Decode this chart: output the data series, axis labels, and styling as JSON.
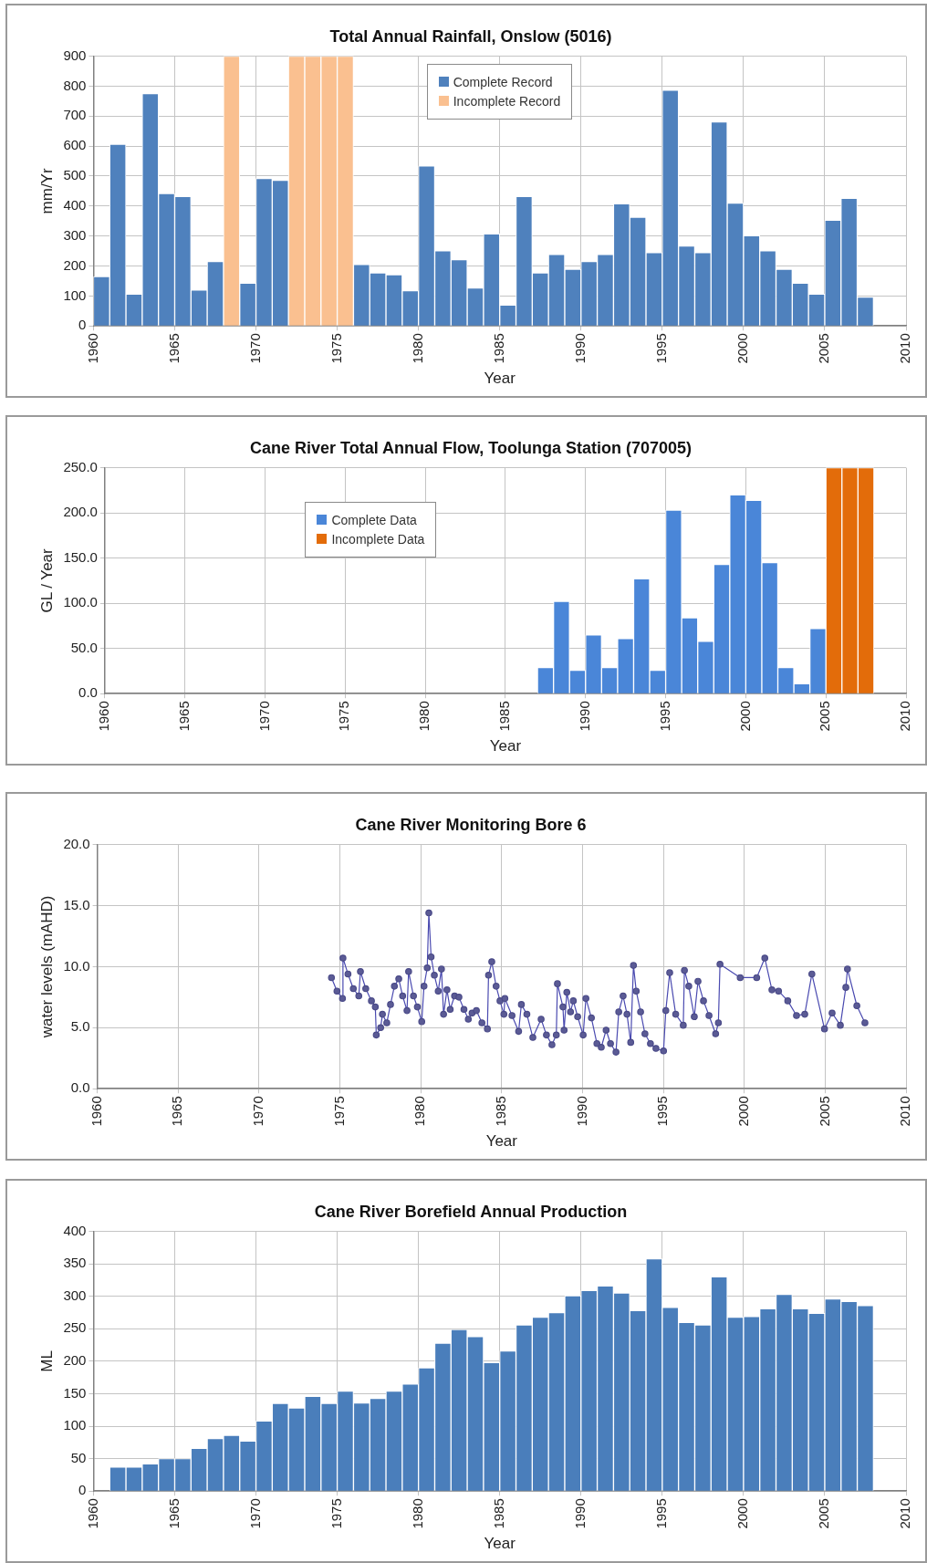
{
  "chart_data": [
    {
      "type": "bar",
      "title": "Total Annual Rainfall, Onslow (5016)",
      "xlabel": "Year",
      "ylabel": "mm/Yr",
      "xlim": [
        1960,
        2010
      ],
      "xticks": [
        1960,
        1965,
        1970,
        1975,
        1980,
        1985,
        1990,
        1995,
        2000,
        2005,
        2010
      ],
      "ylim": [
        0,
        900
      ],
      "yticks": [
        0,
        100,
        200,
        300,
        400,
        500,
        600,
        700,
        800,
        900
      ],
      "grid": true,
      "legend": "top",
      "x": [
        1960.5,
        1961.5,
        1962.5,
        1963.5,
        1964.5,
        1965.5,
        1966.5,
        1967.5,
        1968.5,
        1969.5,
        1970.5,
        1971.5,
        1972.5,
        1973.5,
        1974.5,
        1975.5,
        1976.5,
        1977.5,
        1978.5,
        1979.5,
        1980.5,
        1981.5,
        1982.5,
        1983.5,
        1984.5,
        1985.5,
        1986.5,
        1987.5,
        1988.5,
        1989.5,
        1990.5,
        1991.5,
        1992.5,
        1993.5,
        1994.5,
        1995.5,
        1996.5,
        1997.5,
        1998.5,
        1999.5,
        2000.5,
        2001.5,
        2002.5,
        2003.5,
        2004.5,
        2005.5,
        2006.5,
        2007.5
      ],
      "series": [
        {
          "name": "Complete Record",
          "color": "#4f81bd",
          "values": [
            165,
            606,
            106,
            775,
            442,
            432,
            120,
            215,
            null,
            143,
            492,
            486,
            null,
            null,
            null,
            null,
            205,
            177,
            171,
            118,
            534,
            251,
            221,
            127,
            307,
            70,
            432,
            177,
            239,
            189,
            215,
            239,
            408,
            363,
            245,
            787,
            267,
            245,
            681,
            410,
            301,
            251,
            189,
            143,
            106,
            353,
            426,
            96
          ]
        },
        {
          "name": "Incomplete Record",
          "color": "#fac090",
          "values": [
            null,
            null,
            null,
            null,
            null,
            null,
            null,
            null,
            900,
            null,
            null,
            null,
            900,
            900,
            900,
            900,
            null,
            null,
            null,
            null,
            null,
            null,
            null,
            null,
            null,
            null,
            null,
            null,
            null,
            null,
            null,
            null,
            null,
            null,
            null,
            null,
            null,
            null,
            null,
            null,
            null,
            null,
            null,
            null,
            null,
            null,
            null,
            null
          ]
        }
      ]
    },
    {
      "type": "bar",
      "title": "Cane River Total Annual Flow, Toolunga Station (707005)",
      "xlabel": "Year",
      "ylabel": "GL / Year",
      "xlim": [
        1960,
        2010
      ],
      "xticks": [
        1960,
        1965,
        1970,
        1975,
        1980,
        1985,
        1990,
        1995,
        2000,
        2005,
        2010
      ],
      "ylim": [
        0,
        250
      ],
      "yticks": [
        {
          "value": 0,
          "label": "0.0"
        },
        {
          "value": 50,
          "label": "50.0"
        },
        {
          "value": 100,
          "label": "100.0"
        },
        {
          "value": 150,
          "label": "150.0"
        },
        {
          "value": 200,
          "label": "200.0"
        },
        {
          "value": 250,
          "label": "250.0"
        }
      ],
      "grid": true,
      "legend": "top left",
      "series": [
        {
          "name": "Complete Data",
          "color": "#4a86d8",
          "x": [
            1987.5,
            1988.5,
            1989.5,
            1990.5,
            1991.5,
            1992.5,
            1993.5,
            1994.5,
            1995.5,
            1996.5,
            1997.5,
            1998.5,
            1999.5,
            2000.5,
            2001.5,
            2002.5,
            2003.5,
            2004.5
          ],
          "values": [
            29,
            102,
            26,
            65,
            29,
            61,
            127,
            26,
            203,
            84,
            58,
            143,
            220,
            214,
            145,
            29,
            11,
            72
          ]
        },
        {
          "name": "Incomplete Data",
          "color": "#e36c0a",
          "x": [
            2005.5,
            2006.5,
            2007.5
          ],
          "values": [
            250,
            250,
            250
          ]
        }
      ]
    },
    {
      "type": "line",
      "title": "Cane River Monitoring Bore 6",
      "xlabel": "Year",
      "ylabel": "water levels (mAHD)",
      "xlim": [
        1960,
        2010
      ],
      "xticks": [
        1960,
        1965,
        1970,
        1975,
        1980,
        1985,
        1990,
        1995,
        2000,
        2005,
        2010
      ],
      "ylim": [
        0,
        20
      ],
      "yticks": [
        {
          "value": 0,
          "label": "0.0"
        },
        {
          "value": 5,
          "label": "5.0"
        },
        {
          "value": 10,
          "label": "10.0"
        },
        {
          "value": 15,
          "label": "15.0"
        },
        {
          "value": 20,
          "label": "20.0"
        }
      ],
      "grid": true,
      "marker": "circle",
      "color": "#4a4ab0",
      "x": [
        1974.48,
        1974.82,
        1975.16,
        1975.19,
        1975.5,
        1975.83,
        1976.17,
        1976.27,
        1976.6,
        1976.95,
        1977.19,
        1977.25,
        1977.52,
        1977.63,
        1977.9,
        1978.13,
        1978.37,
        1978.64,
        1978.88,
        1979.15,
        1979.25,
        1979.55,
        1979.79,
        1980.06,
        1980.2,
        1980.4,
        1980.5,
        1980.64,
        1980.84,
        1981.08,
        1981.28,
        1981.41,
        1981.62,
        1981.82,
        1982.09,
        1982.36,
        1982.67,
        1982.94,
        1983.17,
        1983.44,
        1983.78,
        1984.12,
        1984.19,
        1984.39,
        1984.66,
        1984.9,
        1985.14,
        1985.2,
        1985.64,
        1986.05,
        1986.22,
        1986.56,
        1986.93,
        1987.44,
        1987.77,
        1988.11,
        1988.38,
        1988.45,
        1988.79,
        1988.86,
        1989.03,
        1989.26,
        1989.43,
        1989.7,
        1990.04,
        1990.21,
        1990.55,
        1990.89,
        1991.16,
        1991.46,
        1991.73,
        1992.07,
        1992.24,
        1992.51,
        1992.75,
        1992.98,
        1993.15,
        1993.32,
        1993.59,
        1993.86,
        1994.2,
        1994.54,
        1995.01,
        1995.15,
        1995.39,
        1995.76,
        1996.23,
        1996.3,
        1996.57,
        1996.91,
        1997.14,
        1997.48,
        1997.82,
        1998.23,
        1998.4,
        1998.5,
        1999.75,
        2000.77,
        2001.27,
        2001.71,
        2002.12,
        2002.69,
        2003.23,
        2003.74,
        2004.18,
        2004.96,
        2005.43,
        2005.94,
        2006.28,
        2006.38,
        2006.96,
        2007.46
      ],
      "values": [
        9.1,
        8.0,
        7.4,
        10.7,
        9.4,
        8.2,
        7.6,
        9.6,
        8.2,
        7.2,
        6.7,
        4.4,
        5.0,
        6.1,
        5.4,
        6.9,
        8.4,
        9.0,
        7.6,
        6.4,
        9.6,
        7.6,
        6.7,
        5.5,
        8.4,
        9.9,
        14.4,
        10.8,
        9.3,
        8.0,
        9.8,
        6.1,
        8.1,
        6.5,
        7.6,
        7.5,
        6.5,
        5.7,
        6.2,
        6.4,
        5.4,
        4.9,
        9.3,
        10.4,
        8.4,
        7.2,
        6.1,
        7.4,
        6.0,
        4.7,
        6.9,
        6.1,
        4.2,
        5.7,
        4.4,
        3.6,
        4.4,
        8.6,
        6.7,
        4.8,
        7.9,
        6.3,
        7.2,
        5.9,
        4.4,
        7.4,
        5.8,
        3.7,
        3.4,
        4.8,
        3.7,
        3.0,
        6.3,
        7.6,
        6.1,
        3.8,
        10.1,
        8.0,
        6.3,
        4.5,
        3.7,
        3.3,
        3.1,
        6.4,
        9.5,
        6.1,
        5.2,
        9.7,
        8.4,
        5.9,
        8.8,
        7.2,
        6.0,
        4.5,
        5.4,
        10.2,
        9.1,
        9.1,
        10.7,
        8.1,
        8.0,
        7.2,
        6.0,
        6.1,
        9.4,
        4.9,
        6.2,
        5.2,
        8.3,
        9.8,
        6.8,
        5.4
      ]
    },
    {
      "type": "bar",
      "title": "Cane River Borefield Annual Production",
      "xlabel": "Year",
      "ylabel": "ML",
      "xlim": [
        1960,
        2010
      ],
      "xticks": [
        1960,
        1965,
        1970,
        1975,
        1980,
        1985,
        1990,
        1995,
        2000,
        2005,
        2010
      ],
      "ylim": [
        0,
        400
      ],
      "yticks": [
        0,
        50,
        100,
        150,
        200,
        250,
        300,
        350,
        400
      ],
      "grid": true,
      "color": "#4a7ebb",
      "x": [
        1961.5,
        1962.5,
        1963.5,
        1964.5,
        1965.5,
        1966.5,
        1967.5,
        1968.5,
        1969.5,
        1970.5,
        1971.5,
        1972.5,
        1973.5,
        1974.5,
        1975.5,
        1976.5,
        1977.5,
        1978.5,
        1979.5,
        1980.5,
        1981.5,
        1982.5,
        1983.5,
        1984.5,
        1985.5,
        1986.5,
        1987.5,
        1988.5,
        1989.5,
        1990.5,
        1991.5,
        1992.5,
        1993.5,
        1994.5,
        1995.5,
        1996.5,
        1997.5,
        1998.5,
        1999.5,
        2000.5,
        2001.5,
        2002.5,
        2003.5,
        2004.5,
        2005.5,
        2006.5,
        2007.5
      ],
      "values": [
        37,
        37,
        42,
        50,
        50,
        66,
        81,
        86,
        77,
        108,
        135,
        128,
        146,
        135,
        154,
        136,
        143,
        154,
        165,
        190,
        228,
        249,
        238,
        198,
        216,
        256,
        268,
        275,
        301,
        309,
        316,
        305,
        278,
        358,
        283,
        260,
        256,
        330,
        268,
        269,
        281,
        303,
        281,
        274,
        296,
        292,
        286
      ]
    }
  ]
}
